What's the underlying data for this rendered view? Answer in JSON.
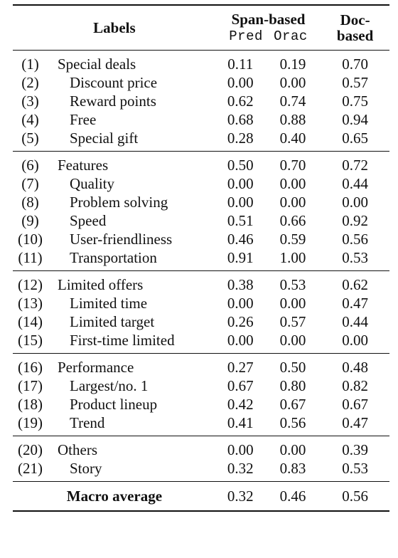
{
  "header": {
    "labels": "Labels",
    "span_based": "Span-based",
    "pred": "Pred",
    "orac": "Orac",
    "doc_based_line1": "Doc-",
    "doc_based_line2": "based"
  },
  "groups": [
    {
      "rows": [
        {
          "num": "(1)",
          "label": "Special deals",
          "sub": false,
          "pred": "0.11",
          "orac": "0.19",
          "doc": "0.70"
        },
        {
          "num": "(2)",
          "label": "Discount price",
          "sub": true,
          "pred": "0.00",
          "orac": "0.00",
          "doc": "0.57"
        },
        {
          "num": "(3)",
          "label": "Reward points",
          "sub": true,
          "pred": "0.62",
          "orac": "0.74",
          "doc": "0.75"
        },
        {
          "num": "(4)",
          "label": "Free",
          "sub": true,
          "pred": "0.68",
          "orac": "0.88",
          "doc": "0.94"
        },
        {
          "num": "(5)",
          "label": "Special gift",
          "sub": true,
          "pred": "0.28",
          "orac": "0.40",
          "doc": "0.65"
        }
      ]
    },
    {
      "rows": [
        {
          "num": "(6)",
          "label": "Features",
          "sub": false,
          "pred": "0.50",
          "orac": "0.70",
          "doc": "0.72"
        },
        {
          "num": "(7)",
          "label": "Quality",
          "sub": true,
          "pred": "0.00",
          "orac": "0.00",
          "doc": "0.44"
        },
        {
          "num": "(8)",
          "label": "Problem solving",
          "sub": true,
          "pred": "0.00",
          "orac": "0.00",
          "doc": "0.00"
        },
        {
          "num": "(9)",
          "label": "Speed",
          "sub": true,
          "pred": "0.51",
          "orac": "0.66",
          "doc": "0.92"
        },
        {
          "num": "(10)",
          "label": "User-friendliness",
          "sub": true,
          "pred": "0.46",
          "orac": "0.59",
          "doc": "0.56"
        },
        {
          "num": "(11)",
          "label": "Transportation",
          "sub": true,
          "pred": "0.91",
          "orac": "1.00",
          "doc": "0.53"
        }
      ]
    },
    {
      "rows": [
        {
          "num": "(12)",
          "label": "Limited offers",
          "sub": false,
          "pred": "0.38",
          "orac": "0.53",
          "doc": "0.62"
        },
        {
          "num": "(13)",
          "label": "Limited time",
          "sub": true,
          "pred": "0.00",
          "orac": "0.00",
          "doc": "0.47"
        },
        {
          "num": "(14)",
          "label": "Limited target",
          "sub": true,
          "pred": "0.26",
          "orac": "0.57",
          "doc": "0.44"
        },
        {
          "num": "(15)",
          "label": "First-time limited",
          "sub": true,
          "pred": "0.00",
          "orac": "0.00",
          "doc": "0.00"
        }
      ]
    },
    {
      "rows": [
        {
          "num": "(16)",
          "label": "Performance",
          "sub": false,
          "pred": "0.27",
          "orac": "0.50",
          "doc": "0.48"
        },
        {
          "num": "(17)",
          "label": "Largest/no. 1",
          "sub": true,
          "pred": "0.67",
          "orac": "0.80",
          "doc": "0.82"
        },
        {
          "num": "(18)",
          "label": "Product lineup",
          "sub": true,
          "pred": "0.42",
          "orac": "0.67",
          "doc": "0.67"
        },
        {
          "num": "(19)",
          "label": "Trend",
          "sub": true,
          "pred": "0.41",
          "orac": "0.56",
          "doc": "0.47"
        }
      ]
    },
    {
      "rows": [
        {
          "num": "(20)",
          "label": "Others",
          "sub": false,
          "pred": "0.00",
          "orac": "0.00",
          "doc": "0.39"
        },
        {
          "num": "(21)",
          "label": "Story",
          "sub": true,
          "pred": "0.32",
          "orac": "0.83",
          "doc": "0.53"
        }
      ]
    }
  ],
  "macro": {
    "label": "Macro average",
    "pred": "0.32",
    "orac": "0.46",
    "doc": "0.56"
  }
}
